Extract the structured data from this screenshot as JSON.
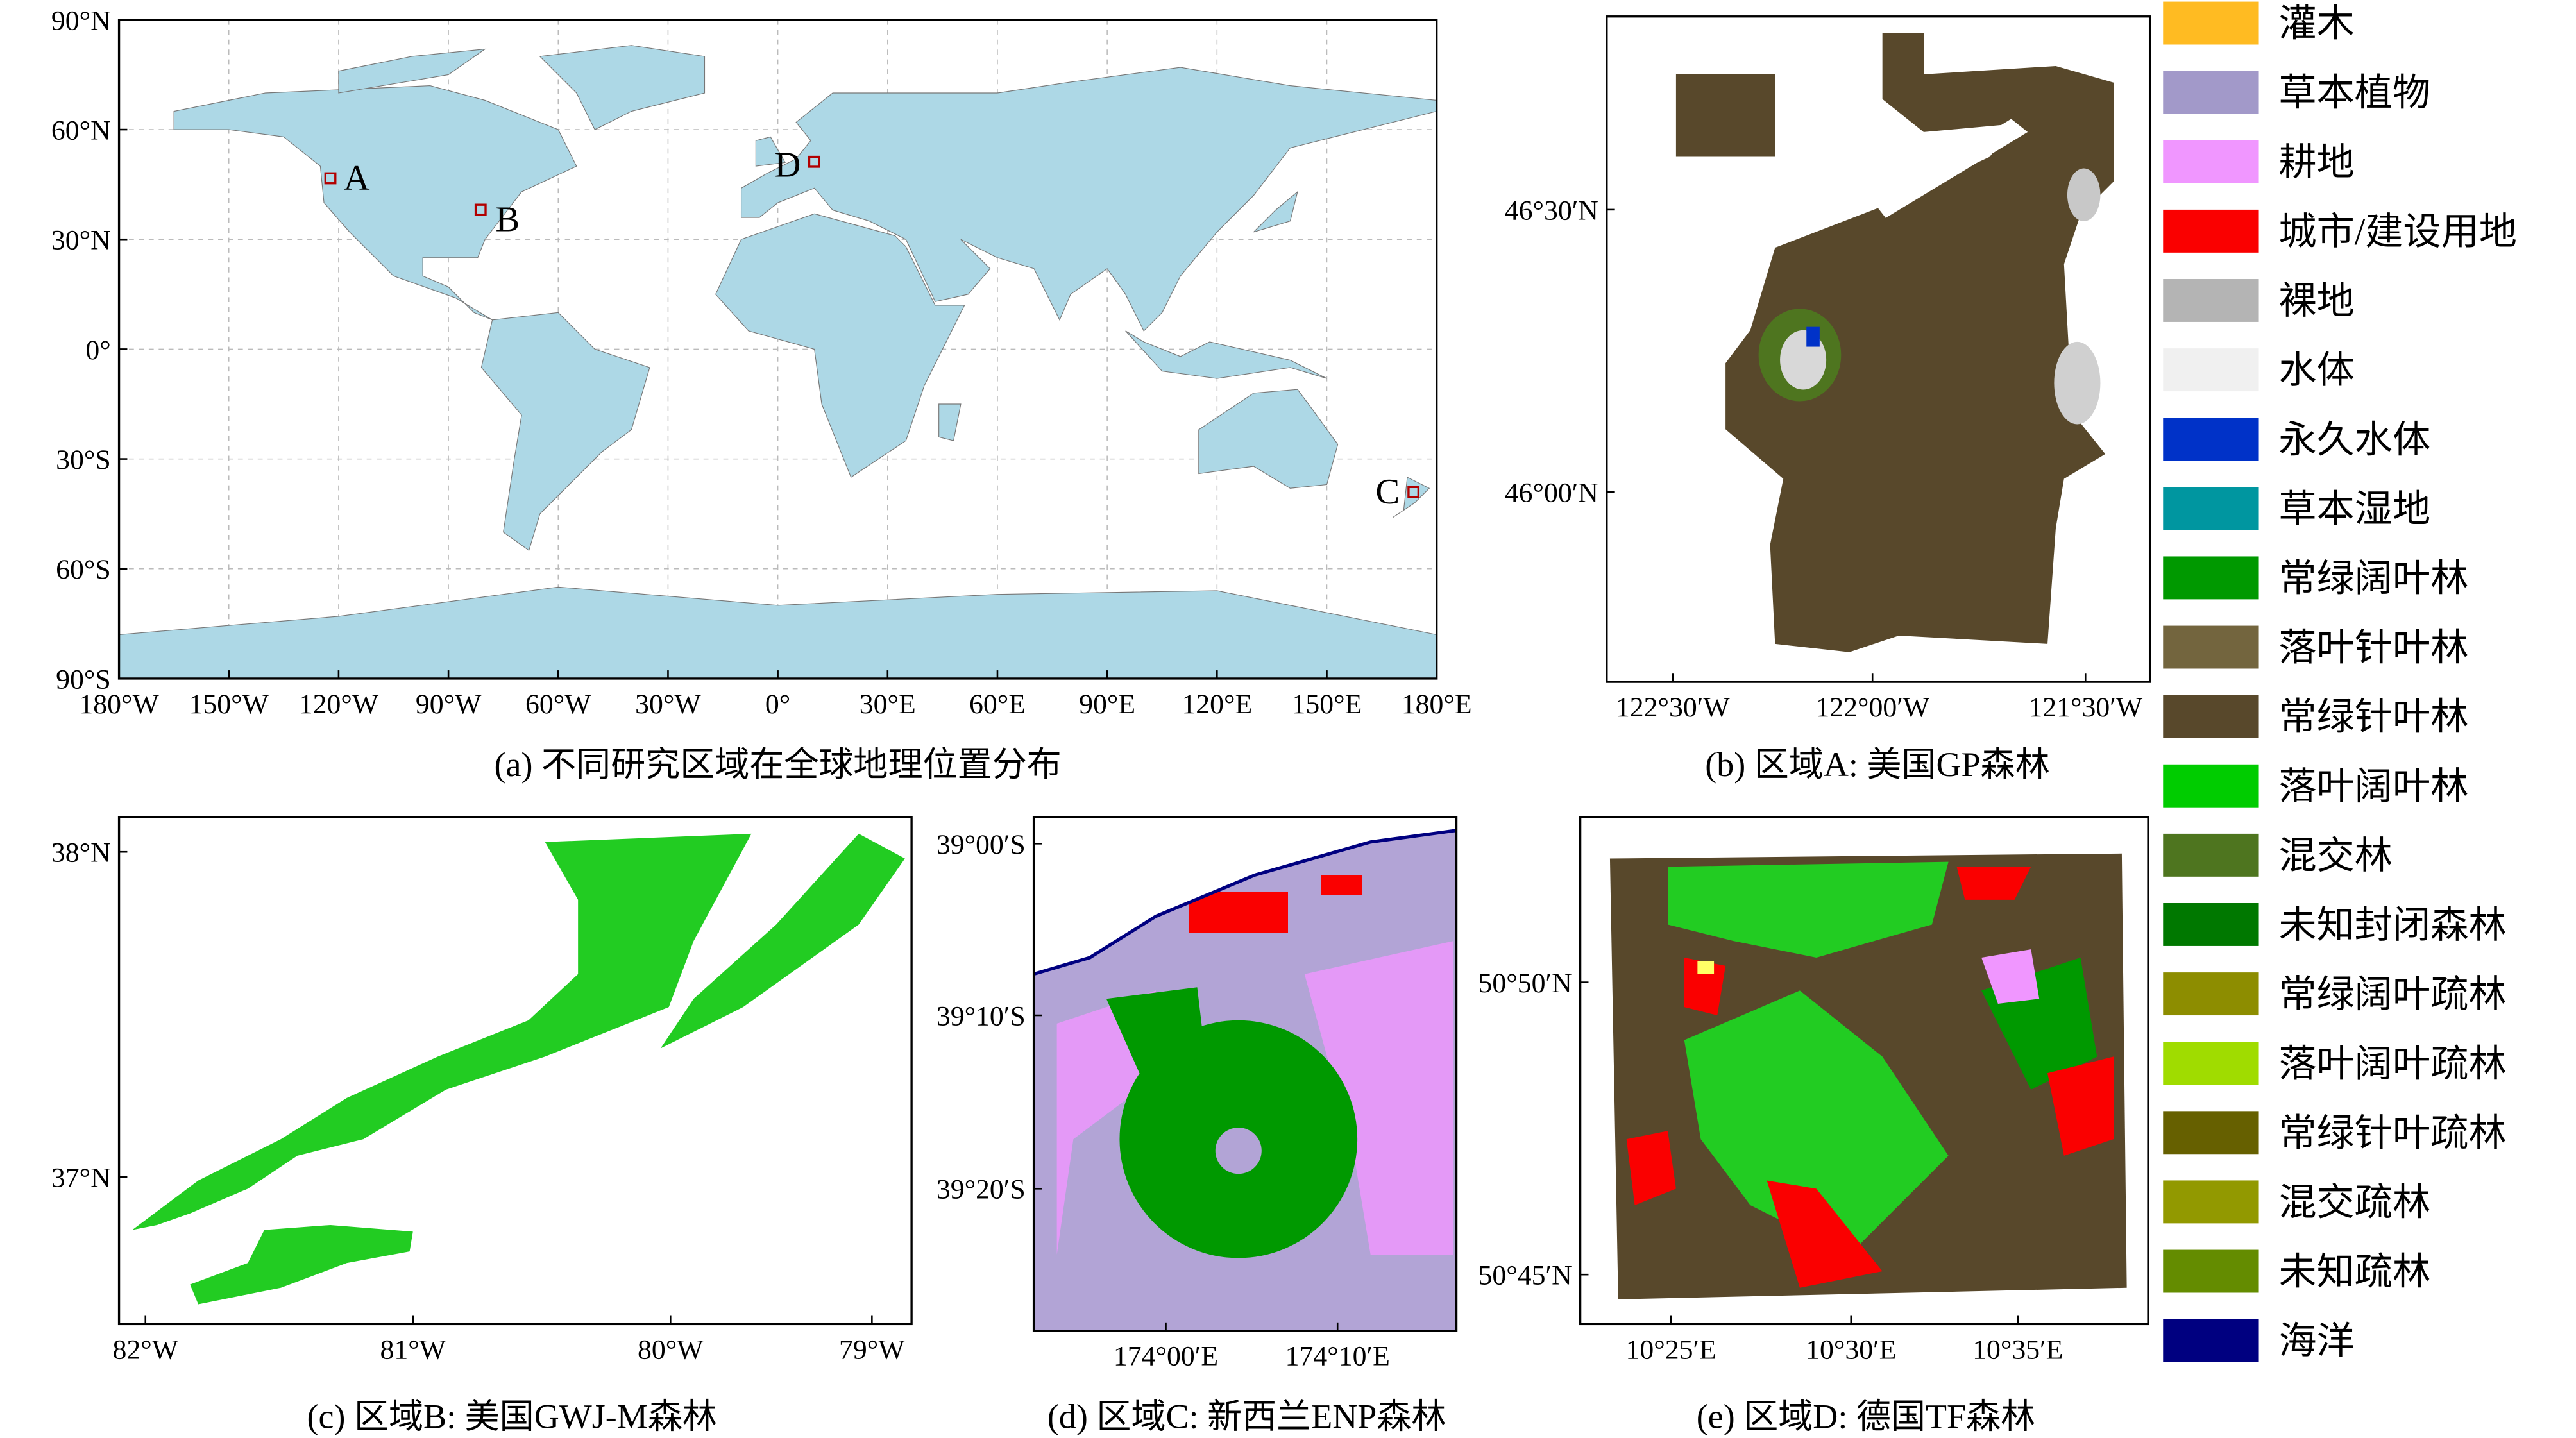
{
  "panels": [
    {
      "caption": "(a) 不同研究区域在全球地理位置分布",
      "x_ticks": [
        "180°W",
        "150°W",
        "120°W",
        "90°W",
        "60°W",
        "30°W",
        "0°",
        "30°E",
        "60°E",
        "90°E",
        "120°E",
        "150°E",
        "180°E"
      ],
      "y_ticks": [
        "90°N",
        "60°N",
        "30°N",
        "0°",
        "30°S",
        "60°S",
        "90°S"
      ],
      "sites": [
        "A",
        "B",
        "C",
        "D"
      ]
    },
    {
      "caption": "(b) 区域A: 美国GP森林",
      "x_ticks": [
        "122°30′W",
        "122°00′W",
        "121°30′W"
      ],
      "y_ticks": [
        "46°30′N",
        "46°00′N"
      ]
    },
    {
      "caption": "(c) 区域B: 美国GWJ-M森林",
      "x_ticks": [
        "82°W",
        "81°W",
        "80°W",
        "79°W"
      ],
      "y_ticks": [
        "38°N",
        "37°N"
      ]
    },
    {
      "caption": "(d) 区域C: 新西兰ENP森林",
      "x_ticks": [
        "174°00′E",
        "174°10′E"
      ],
      "y_ticks": [
        "39°00′S",
        "39°10′S",
        "39°20′S"
      ]
    },
    {
      "caption": "(e) 区域D: 德国TF森林",
      "x_ticks": [
        "10°25′E",
        "10°30′E",
        "10°35′E"
      ],
      "y_ticks": [
        "50°50′N",
        "50°45′N"
      ]
    }
  ],
  "legend": [
    {
      "label": "灌木",
      "color": "#ffbb22"
    },
    {
      "label": "草本植物",
      "color": "#a299c9"
    },
    {
      "label": "耕地",
      "color": "#f096ff"
    },
    {
      "label": "城市/建设用地",
      "color": "#fa0000"
    },
    {
      "label": "裸地",
      "color": "#b4b4b4"
    },
    {
      "label": "水体",
      "color": "#f0f0f0"
    },
    {
      "label": "永久水体",
      "color": "#0032c8"
    },
    {
      "label": "草本湿地",
      "color": "#0096a0"
    },
    {
      "label": "常绿阔叶林",
      "color": "#009900"
    },
    {
      "label": "落叶针叶林",
      "color": "#73653e"
    },
    {
      "label": "常绿针叶林",
      "color": "#58482b"
    },
    {
      "label": "落叶阔叶林",
      "color": "#00cc00"
    },
    {
      "label": "混交林",
      "color": "#4e751f"
    },
    {
      "label": "未知封闭森林",
      "color": "#007800"
    },
    {
      "label": "常绿阔叶疏林",
      "color": "#8d8d00"
    },
    {
      "label": "落叶阔叶疏林",
      "color": "#a0dc00"
    },
    {
      "label": "常绿针叶疏林",
      "color": "#666000"
    },
    {
      "label": "混交疏林",
      "color": "#929900"
    },
    {
      "label": "未知疏林",
      "color": "#648c00"
    },
    {
      "label": "海洋",
      "color": "#000080"
    }
  ]
}
